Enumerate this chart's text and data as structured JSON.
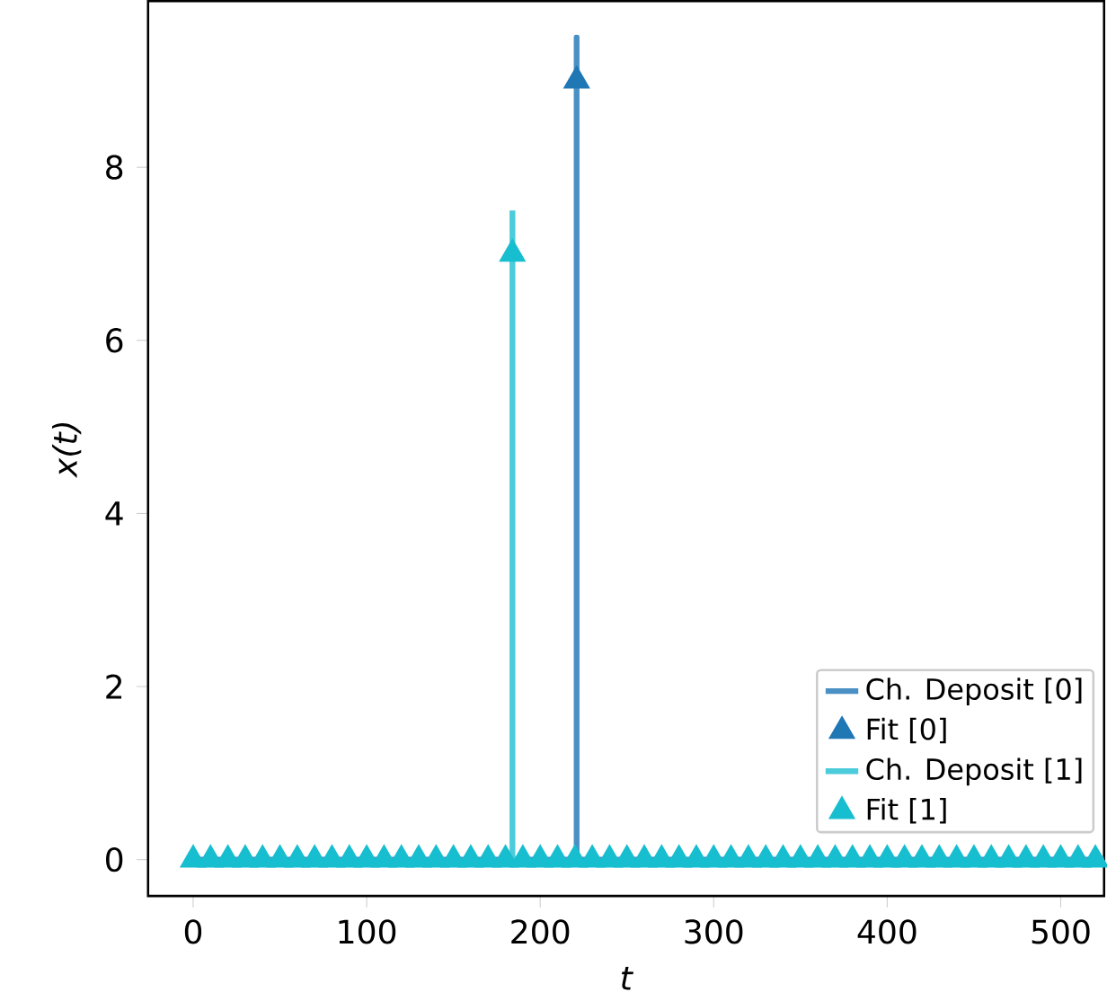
{
  "chart_data": {
    "type": "line",
    "xlabel": "t",
    "ylabel": "x(t)",
    "xlim": [
      -26,
      525
    ],
    "ylim": [
      -0.42,
      9.92
    ],
    "xticks": [
      0,
      100,
      200,
      300,
      400,
      500
    ],
    "yticks": [
      0,
      2,
      4,
      6,
      8
    ],
    "legend": "bottom right",
    "line_style": "solid",
    "series": [
      {
        "name": "Ch. Deposit [0]",
        "marker": "none",
        "color": "#4a90c4",
        "x": [
          0,
          221,
          221,
          221,
          525
        ],
        "values": [
          0,
          0,
          9.5,
          0,
          0
        ]
      },
      {
        "name": "Fit [0]",
        "type": "scatter",
        "marker": "triangle",
        "color": "#1f77b4",
        "x": [
          221
        ],
        "values": [
          9
        ]
      },
      {
        "name": "Ch. Deposit [1]",
        "marker": "none",
        "color": "#4ccbdb",
        "x": [
          184,
          184
        ],
        "values": [
          0,
          7.5
        ]
      },
      {
        "name": "Fit [1]",
        "type": "scatter",
        "marker": "triangle",
        "color": "#17becf",
        "x": [
          0,
          10,
          20,
          30,
          40,
          50,
          60,
          70,
          80,
          90,
          100,
          110,
          120,
          130,
          140,
          150,
          160,
          170,
          180,
          184,
          190,
          200,
          210,
          220,
          230,
          240,
          250,
          260,
          270,
          280,
          290,
          300,
          310,
          320,
          330,
          340,
          350,
          360,
          370,
          380,
          390,
          400,
          410,
          420,
          430,
          440,
          450,
          460,
          470,
          480,
          490,
          500,
          510,
          520
        ],
        "values": [
          0,
          0,
          0,
          0,
          0,
          0,
          0,
          0,
          0,
          0,
          0,
          0,
          0,
          0,
          0,
          0,
          0,
          0,
          0,
          7,
          0,
          0,
          0,
          0,
          0,
          0,
          0,
          0,
          0,
          0,
          0,
          0,
          0,
          0,
          0,
          0,
          0,
          0,
          0,
          0,
          0,
          0,
          0,
          0,
          0,
          0,
          0,
          0,
          0,
          0,
          0,
          0,
          0,
          0
        ]
      }
    ]
  }
}
